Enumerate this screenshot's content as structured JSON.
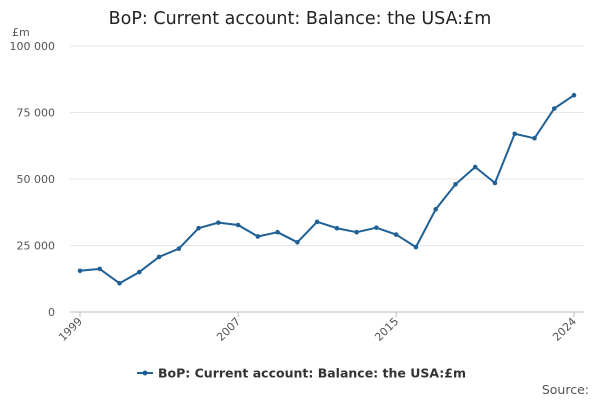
{
  "chart_data": {
    "type": "line",
    "title": "BoP: Current account: Balance: the USA:£m",
    "unit": "£m",
    "xlabel": "",
    "ylabel": "",
    "x": [
      1999,
      2000,
      2001,
      2002,
      2003,
      2004,
      2005,
      2006,
      2007,
      2008,
      2009,
      2010,
      2011,
      2012,
      2013,
      2014,
      2015,
      2016,
      2017,
      2018,
      2019,
      2020,
      2021,
      2022,
      2023,
      2024
    ],
    "x_tick_values": [
      1999,
      2007,
      2015,
      2024
    ],
    "x_tick_labels": [
      "1999",
      "2007",
      "2015",
      "2024"
    ],
    "xlim": [
      1999,
      2024
    ],
    "ylim": [
      0,
      100000
    ],
    "y_tick_values": [
      0,
      25000,
      50000,
      75000,
      100000
    ],
    "y_tick_labels": [
      "0",
      "25 000",
      "50 000",
      "75 000",
      "100 000"
    ],
    "grid": true,
    "legend_position": "bottom",
    "series": [
      {
        "name": "BoP: Current account: Balance: the USA:£m",
        "color": "#206095",
        "marker": "circle",
        "values": [
          15500,
          16200,
          10800,
          15000,
          20700,
          23800,
          31500,
          33600,
          32700,
          28400,
          30000,
          26200,
          33900,
          31500,
          30000,
          31700,
          29100,
          24400,
          38600,
          48000,
          54500,
          48500,
          67000,
          65300,
          76500,
          81500
        ]
      }
    ],
    "source_label": "Source:"
  }
}
